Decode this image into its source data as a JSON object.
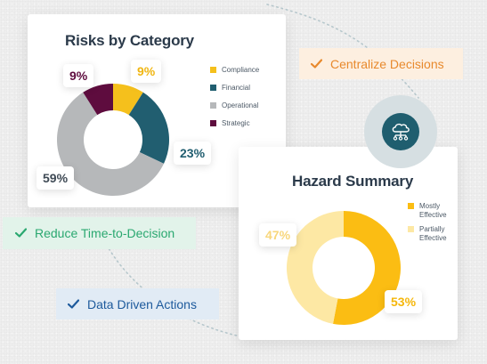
{
  "risks_card": {
    "title": "Risks by Category",
    "legend": [
      {
        "label": "Compliance",
        "color": "#f5c01c"
      },
      {
        "label": "Financial",
        "color": "#215e70"
      },
      {
        "label": "Operational",
        "color": "#b6b8ba"
      },
      {
        "label": "Strategic",
        "color": "#5e0c3e"
      }
    ],
    "labels": {
      "compliance": "9%",
      "financial": "23%",
      "operational": "59%",
      "strategic": "9%"
    }
  },
  "hazard_card": {
    "title": "Hazard Summary",
    "legend": [
      {
        "label": "Mostly Effective",
        "color": "#fbbd13"
      },
      {
        "label": "Partially Effective",
        "color": "#fde8a4"
      }
    ],
    "labels": {
      "mostly": "53%",
      "partially": "47%"
    }
  },
  "pills": {
    "centralize": {
      "label": "Centralize Decisions",
      "color": "#e8892c",
      "bg": "#fdefe0"
    },
    "reduce": {
      "label": "Reduce Time-to-Decision",
      "color": "#2aa870",
      "bg": "#e2f3ea"
    },
    "data_driven": {
      "label": "Data Driven Actions",
      "color": "#1d5a9c",
      "bg": "#e1ebf5"
    }
  },
  "icons": {
    "cloud": "cloud-network-icon",
    "check": "check-icon"
  },
  "chart_data": [
    {
      "type": "pie",
      "title": "Risks by Category",
      "series": [
        {
          "values": [
            9,
            23,
            59,
            9
          ],
          "labels": [
            "Compliance",
            "Financial",
            "Operational",
            "Strategic"
          ]
        }
      ],
      "categories": [
        "Compliance",
        "Financial",
        "Operational",
        "Strategic"
      ],
      "colors": [
        "#f5c01c",
        "#215e70",
        "#b6b8ba",
        "#5e0c3e"
      ],
      "legend": "right"
    },
    {
      "type": "pie",
      "title": "Hazard Summary",
      "categories": [
        "Mostly Effective",
        "Partially Effective"
      ],
      "series": [
        {
          "values": [
            53,
            47
          ]
        }
      ],
      "colors": [
        "#fbbd13",
        "#fde8a4"
      ],
      "legend": "right"
    }
  ]
}
